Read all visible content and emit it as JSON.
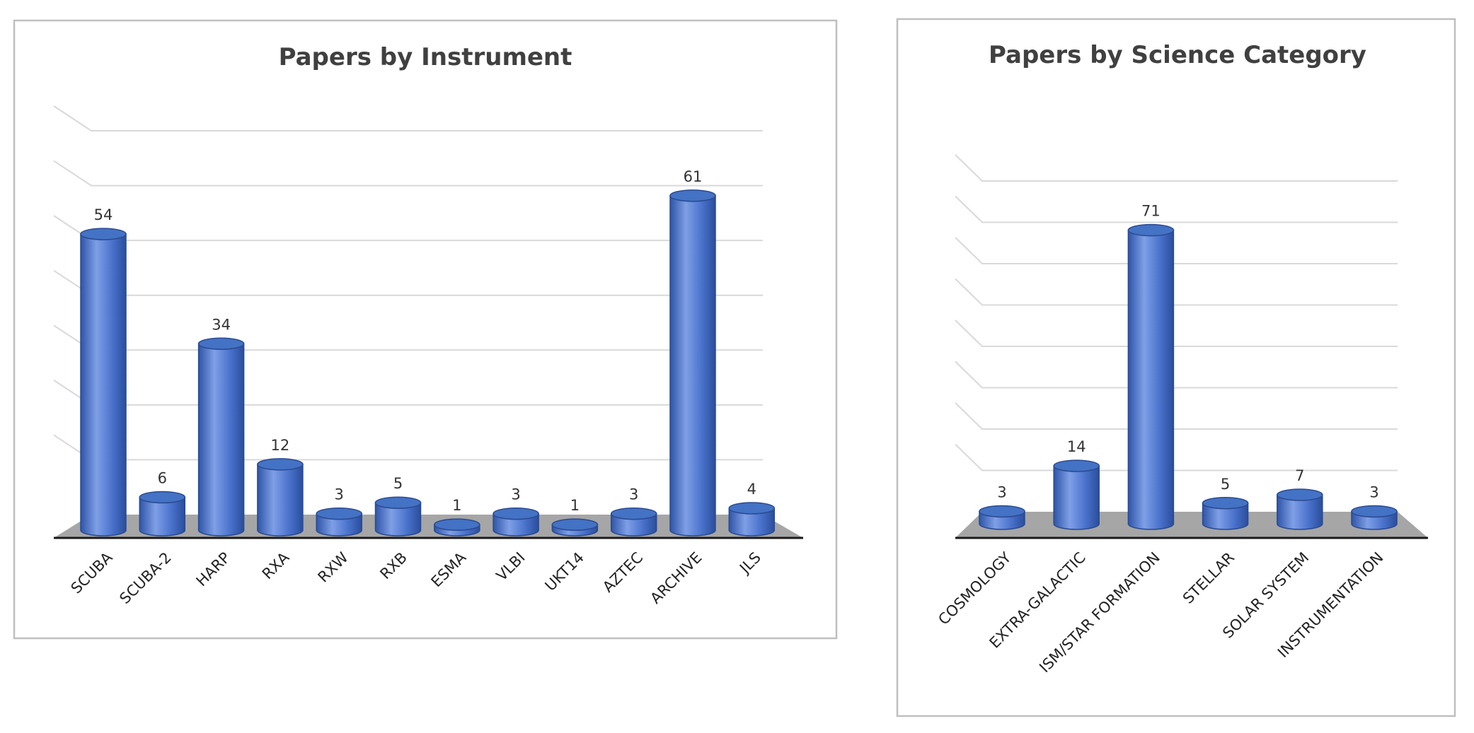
{
  "chart_data": [
    {
      "type": "bar",
      "title": "Papers by Instrument",
      "categories": [
        "SCUBA",
        "SCUBA-2",
        "HARP",
        "RXA",
        "RXW",
        "RXB",
        "ESMA",
        "VLBI",
        "UKT14",
        "AZTEC",
        "ARCHIVE",
        "JLS"
      ],
      "values": [
        54,
        6,
        34,
        12,
        3,
        5,
        1,
        3,
        1,
        3,
        61,
        4
      ],
      "color": "#4472c4",
      "ylim": [
        0,
        70
      ],
      "yticks": [
        0,
        10,
        20,
        30,
        40,
        50,
        60,
        70
      ],
      "grid": true
    },
    {
      "type": "bar",
      "title": "Papers by Science Category",
      "categories": [
        "COSMOLOGY",
        "EXTRA-GALACTIC",
        "ISM/STAR FORMATION",
        "STELLAR",
        "SOLAR SYSTEM",
        "INSTRUMENTATION"
      ],
      "values": [
        3,
        14,
        71,
        5,
        7,
        3
      ],
      "color": "#4472c4",
      "ylim": [
        0,
        80
      ],
      "yticks": [
        0,
        10,
        20,
        30,
        40,
        50,
        60,
        70,
        80
      ],
      "grid": true
    }
  ]
}
